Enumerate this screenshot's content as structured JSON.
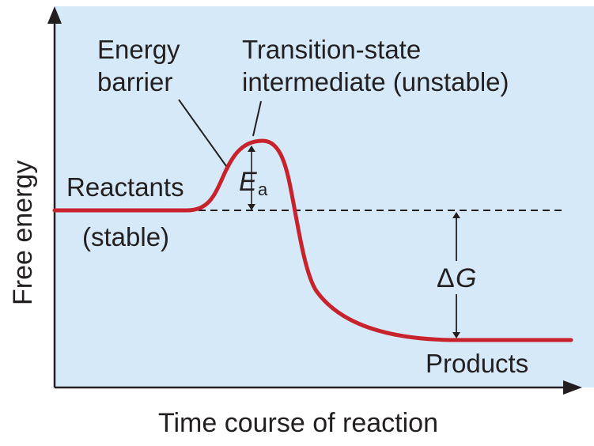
{
  "diagram": {
    "x_axis_label": "Time course of reaction",
    "y_axis_label": "Free energy",
    "energy_barrier": {
      "line1": "Energy",
      "line2": "barrier"
    },
    "transition_state": {
      "line1": "Transition-state",
      "line2": "intermediate (unstable)"
    },
    "reactants": {
      "line1": "Reactants",
      "line2": "(stable)"
    },
    "products": "Products",
    "activation_energy": {
      "symbol": "E",
      "subscript": "a"
    },
    "delta_g": {
      "delta": "Δ",
      "symbol": "G"
    },
    "colors": {
      "panel_background": "#d6e9f8",
      "curve": "#c8232c",
      "axis": "#231f20",
      "text": "#231f20"
    }
  }
}
